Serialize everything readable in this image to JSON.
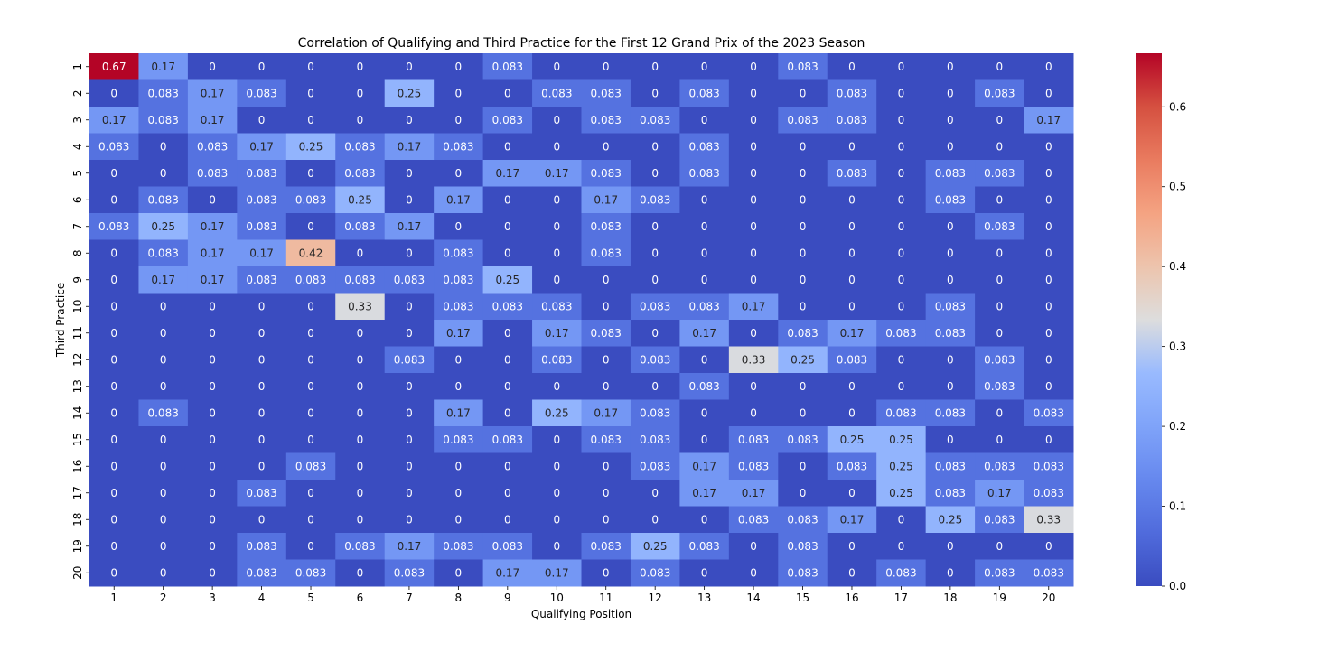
{
  "chart_data": {
    "type": "heatmap",
    "title": "Correlation of Qualifying and Third Practice for the First 12 Grand Prix of the 2023 Season",
    "xlabel": "Qualifying Position",
    "ylabel": "Third Practice",
    "x_categories": [
      "1",
      "2",
      "3",
      "4",
      "5",
      "6",
      "7",
      "8",
      "9",
      "10",
      "11",
      "12",
      "13",
      "14",
      "15",
      "16",
      "17",
      "18",
      "19",
      "20"
    ],
    "y_categories": [
      "1",
      "2",
      "3",
      "4",
      "5",
      "6",
      "7",
      "8",
      "9",
      "10",
      "11",
      "12",
      "13",
      "14",
      "15",
      "16",
      "17",
      "18",
      "19",
      "20"
    ],
    "values": [
      [
        0.67,
        0.17,
        0,
        0,
        0,
        0,
        0,
        0,
        0.083,
        0,
        0,
        0,
        0,
        0,
        0.083,
        0,
        0,
        0,
        0,
        0
      ],
      [
        0,
        0.083,
        0.17,
        0.083,
        0,
        0,
        0.25,
        0,
        0,
        0.083,
        0.083,
        0,
        0.083,
        0,
        0,
        0.083,
        0,
        0,
        0.083,
        0
      ],
      [
        0.17,
        0.083,
        0.17,
        0,
        0,
        0,
        0,
        0,
        0.083,
        0,
        0.083,
        0.083,
        0,
        0,
        0.083,
        0.083,
        0,
        0,
        0,
        0.17
      ],
      [
        0.083,
        0,
        0.083,
        0.17,
        0.25,
        0.083,
        0.17,
        0.083,
        0,
        0,
        0,
        0,
        0.083,
        0,
        0,
        0,
        0,
        0,
        0,
        0
      ],
      [
        0,
        0,
        0.083,
        0.083,
        0,
        0.083,
        0,
        0,
        0.17,
        0.17,
        0.083,
        0,
        0.083,
        0,
        0,
        0.083,
        0,
        0.083,
        0.083,
        0
      ],
      [
        0,
        0.083,
        0,
        0.083,
        0.083,
        0.25,
        0,
        0.17,
        0,
        0,
        0.17,
        0.083,
        0,
        0,
        0,
        0,
        0,
        0.083,
        0,
        0
      ],
      [
        0.083,
        0.25,
        0.17,
        0.083,
        0,
        0.083,
        0.17,
        0,
        0,
        0,
        0.083,
        0,
        0,
        0,
        0,
        0,
        0,
        0,
        0.083,
        0
      ],
      [
        0,
        0.083,
        0.17,
        0.17,
        0.42,
        0,
        0,
        0.083,
        0,
        0,
        0.083,
        0,
        0,
        0,
        0,
        0,
        0,
        0,
        0,
        0
      ],
      [
        0,
        0.17,
        0.17,
        0.083,
        0.083,
        0.083,
        0.083,
        0.083,
        0.25,
        0,
        0,
        0,
        0,
        0,
        0,
        0,
        0,
        0,
        0,
        0
      ],
      [
        0,
        0,
        0,
        0,
        0,
        0.33,
        0,
        0.083,
        0.083,
        0.083,
        0,
        0.083,
        0.083,
        0.17,
        0,
        0,
        0,
        0.083,
        0,
        0
      ],
      [
        0,
        0,
        0,
        0,
        0,
        0,
        0,
        0.17,
        0,
        0.17,
        0.083,
        0,
        0.17,
        0,
        0.083,
        0.17,
        0.083,
        0.083,
        0,
        0
      ],
      [
        0,
        0,
        0,
        0,
        0,
        0,
        0.083,
        0,
        0,
        0.083,
        0,
        0.083,
        0,
        0.33,
        0.25,
        0.083,
        0,
        0,
        0.083,
        0
      ],
      [
        0,
        0,
        0,
        0,
        0,
        0,
        0,
        0,
        0,
        0,
        0,
        0,
        0.083,
        0,
        0,
        0,
        0,
        0,
        0.083,
        0
      ],
      [
        0,
        0.083,
        0,
        0,
        0,
        0,
        0,
        0.17,
        0,
        0.25,
        0.17,
        0.083,
        0,
        0,
        0,
        0,
        0.083,
        0.083,
        0,
        0.083
      ],
      [
        0,
        0,
        0,
        0,
        0,
        0,
        0,
        0.083,
        0.083,
        0,
        0.083,
        0.083,
        0,
        0.083,
        0.083,
        0.25,
        0.25,
        0,
        0,
        0
      ],
      [
        0,
        0,
        0,
        0,
        0.083,
        0,
        0,
        0,
        0,
        0,
        0,
        0.083,
        0.17,
        0.083,
        0,
        0.083,
        0.25,
        0.083,
        0.083,
        0.083
      ],
      [
        0,
        0,
        0,
        0.083,
        0,
        0,
        0,
        0,
        0,
        0,
        0,
        0,
        0.17,
        0.17,
        0,
        0,
        0.25,
        0.083,
        0.17,
        0.083
      ],
      [
        0,
        0,
        0,
        0,
        0,
        0,
        0,
        0,
        0,
        0,
        0,
        0,
        0,
        0.083,
        0.083,
        0.17,
        0,
        0.25,
        0.083,
        0.33
      ],
      [
        0,
        0,
        0,
        0.083,
        0,
        0.083,
        0.17,
        0.083,
        0.083,
        0,
        0.083,
        0.25,
        0.083,
        0,
        0.083,
        0,
        0,
        0,
        0,
        0
      ],
      [
        0,
        0,
        0,
        0.083,
        0.083,
        0,
        0.083,
        0,
        0.17,
        0.17,
        0,
        0.083,
        0,
        0,
        0.083,
        0,
        0.083,
        0,
        0.083,
        0.083
      ]
    ],
    "colormap": "coolwarm",
    "vmin": 0,
    "vmax": 0.667,
    "colorbar": {
      "ticks": [
        0.0,
        0.1,
        0.2,
        0.3,
        0.4,
        0.5,
        0.6
      ],
      "tick_labels": [
        "0.0",
        "0.1",
        "0.2",
        "0.3",
        "0.4",
        "0.5",
        "0.6"
      ]
    },
    "annotated": true
  }
}
